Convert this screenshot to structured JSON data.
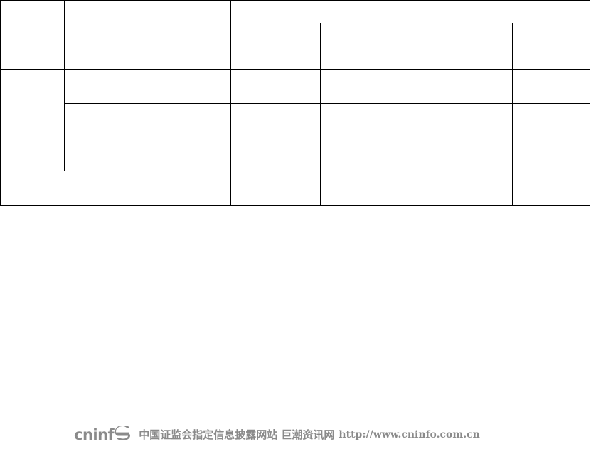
{
  "footer": {
    "logo_text": "cninf",
    "logo_mark_icon": "cninfo-swirl-icon",
    "site_text": "中国证监会指定信息披露网站 巨潮资讯网",
    "url_text": "http://www.cninfo.com.cn"
  },
  "table": {
    "rows": 6,
    "columns": 6,
    "cells_text": ""
  }
}
